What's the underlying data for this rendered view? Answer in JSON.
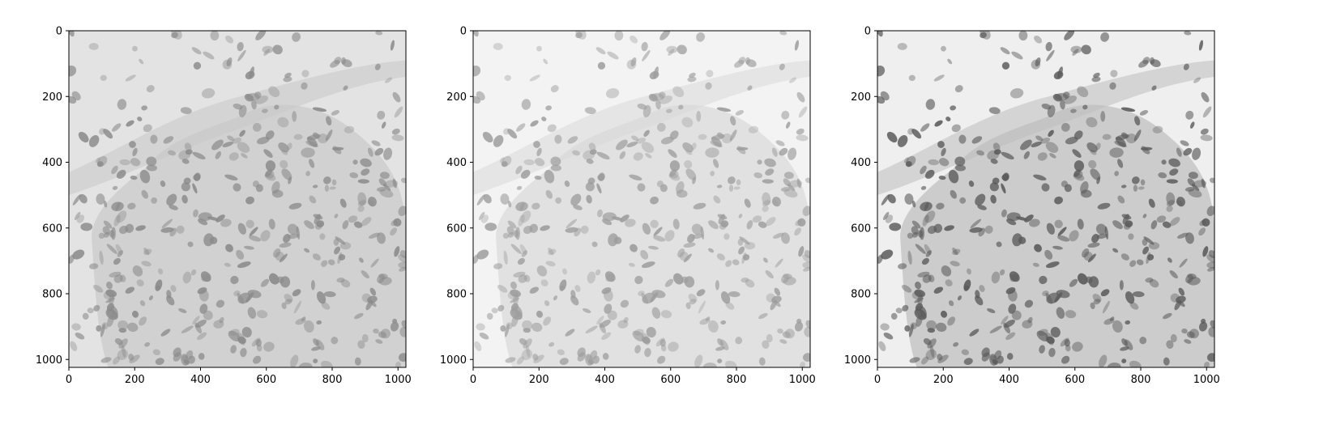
{
  "figure": {
    "panels": [
      {
        "id": "panel-1",
        "tone": "light-gray-background",
        "x_ticks": [
          "0",
          "200",
          "400",
          "600",
          "800",
          "1000"
        ],
        "y_ticks": [
          "0",
          "200",
          "400",
          "600",
          "800",
          "1000"
        ]
      },
      {
        "id": "panel-2",
        "tone": "near-white-background",
        "x_ticks": [
          "0",
          "200",
          "400",
          "600",
          "800",
          "1000"
        ],
        "y_ticks": [
          "0",
          "200",
          "400",
          "600",
          "800",
          "1000"
        ]
      },
      {
        "id": "panel-3",
        "tone": "high-contrast",
        "x_ticks": [
          "0",
          "200",
          "400",
          "600",
          "800",
          "1000"
        ],
        "y_ticks": [
          "0",
          "200",
          "400",
          "600",
          "800",
          "1000"
        ]
      }
    ],
    "axis_range": [
      0,
      1024
    ],
    "tick_values": [
      0,
      200,
      400,
      600,
      800,
      1000
    ],
    "colors": {
      "panel_1_bg": "#e3e3e3",
      "panel_2_bg": "#f3f3f3",
      "panel_3_bg": "#efefef",
      "tissue_1": "#c9c9c9",
      "tissue_2": "#d9d9d9",
      "tissue_3": "#bdbdbd",
      "nuclei_1": "#8a8a8a",
      "nuclei_2": "#9c9c9c",
      "nuclei_3": "#5a5a5a"
    }
  }
}
